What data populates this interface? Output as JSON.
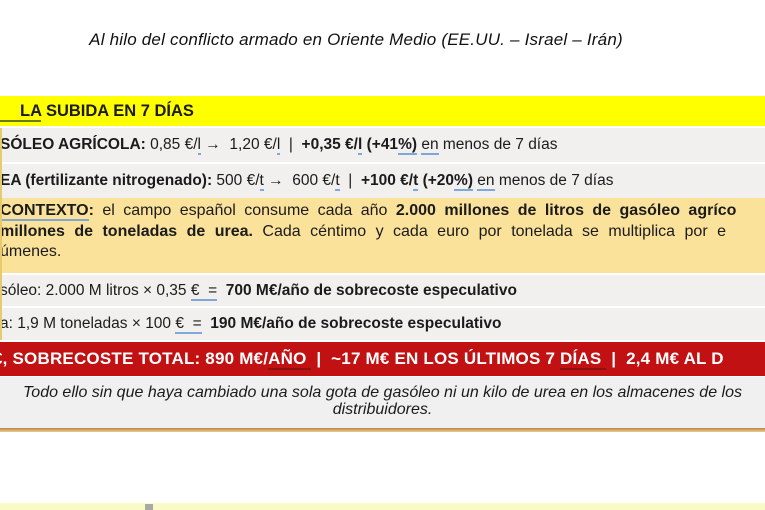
{
  "title": "Al hilo del conflicto armado en Oriente Medio (EE.UU. – Israel – Irán)",
  "colors": {
    "yellow": "#FFFF00",
    "tan": "#FAE29B",
    "red": "#C21113",
    "row_gray": "#F1F0EE",
    "note_gray": "#F0F0F0",
    "gold": "#D19C52",
    "pale_strip": "#FAFAC6",
    "underline_blue": "#7FA8D9",
    "underline_dark": "#8E1111",
    "underline_olive": "#6A7A20",
    "ink": "#1B1B1B"
  },
  "subida": {
    "frags": [
      {
        "t": "LA",
        "c": "uo padl"
      },
      {
        "t": " SUBIDA EN 7 DÍAS",
        "c": ""
      }
    ]
  },
  "rows": {
    "gasoleo": {
      "frags": [
        {
          "t": "SÓLEO AGRÍCOLA:",
          "c": "b"
        },
        {
          "t": " 0,85 €/",
          "c": ""
        },
        {
          "t": "l",
          "c": "u"
        },
        {
          "t": " →  1,20 €/",
          "c": ""
        },
        {
          "t": "l",
          "c": "u"
        },
        {
          "t": "  |  ",
          "c": ""
        },
        {
          "t": "+0,35 €/",
          "c": "b"
        },
        {
          "t": "l",
          "c": "b u"
        },
        {
          "t": " (+41",
          "c": "b"
        },
        {
          "t": "%)",
          "c": "b u"
        },
        {
          "t": " ",
          "c": ""
        },
        {
          "t": "en",
          "c": "u"
        },
        {
          "t": " menos de 7 días",
          "c": ""
        }
      ]
    },
    "urea": {
      "frags": [
        {
          "t": "EA (fertilizante nitrogenado):",
          "c": "b"
        },
        {
          "t": " 500 €/",
          "c": ""
        },
        {
          "t": "t",
          "c": "u"
        },
        {
          "t": " →  600 €/",
          "c": ""
        },
        {
          "t": "t",
          "c": "u"
        },
        {
          "t": "  |  ",
          "c": ""
        },
        {
          "t": "+100 €/",
          "c": "b"
        },
        {
          "t": "t",
          "c": "b u"
        },
        {
          "t": " (+20",
          "c": "b"
        },
        {
          "t": "%)",
          "c": "b u"
        },
        {
          "t": " ",
          "c": ""
        },
        {
          "t": "en",
          "c": "u"
        },
        {
          "t": " menos de 7 días",
          "c": ""
        }
      ]
    },
    "calc_gasoleo": {
      "frags": [
        {
          "t": "sóleo: 2.000 M litros × 0,35 ",
          "c": ""
        },
        {
          "t": "€  =",
          "c": "u"
        },
        {
          "t": "  ",
          "c": ""
        },
        {
          "t": "700 M€/año de sobrecoste especulativo",
          "c": "b"
        }
      ]
    },
    "calc_urea": {
      "frags": [
        {
          "t": "a: 1,9 M toneladas × 100 ",
          "c": ""
        },
        {
          "t": "€  =",
          "c": "u"
        },
        {
          "t": "  ",
          "c": ""
        },
        {
          "t": "190 M€/año de sobrecoste especulativo",
          "c": "b"
        }
      ]
    }
  },
  "context": {
    "line1": [
      {
        "t": "CONTEXTO",
        "c": "b u"
      },
      {
        "t": ":",
        "c": "b"
      },
      {
        "t": " el campo español consume cada año ",
        "c": ""
      },
      {
        "t": "2.000 millones de litros de gasóleo agríco",
        "c": "b"
      }
    ],
    "line2": [
      {
        "t": "millones de toneladas de urea.",
        "c": "b"
      },
      {
        "t": " Cada céntimo y cada euro por tonelada se multiplica por e",
        "c": ""
      }
    ],
    "line3": [
      {
        "t": "úmenes.",
        "c": ""
      }
    ]
  },
  "total": {
    "frags": [
      {
        "t": "€,",
        "c": ""
      },
      {
        "t": " SOBRECOSTE TOTAL: 890 M€/",
        "c": ""
      },
      {
        "t": "AÑO ",
        "c": "ud"
      },
      {
        "t": " |  ~17 M€ EN LOS ÚLTIMOS 7 ",
        "c": ""
      },
      {
        "t": "DÍAS ",
        "c": "ud"
      },
      {
        "t": " |  2,4 M€ AL D",
        "c": ""
      }
    ]
  },
  "note": {
    "line1": "Todo ello sin que haya cambiado una sola gota de gasóleo ni un kilo de urea en los almacenes de los",
    "line2": "distribuidores."
  }
}
